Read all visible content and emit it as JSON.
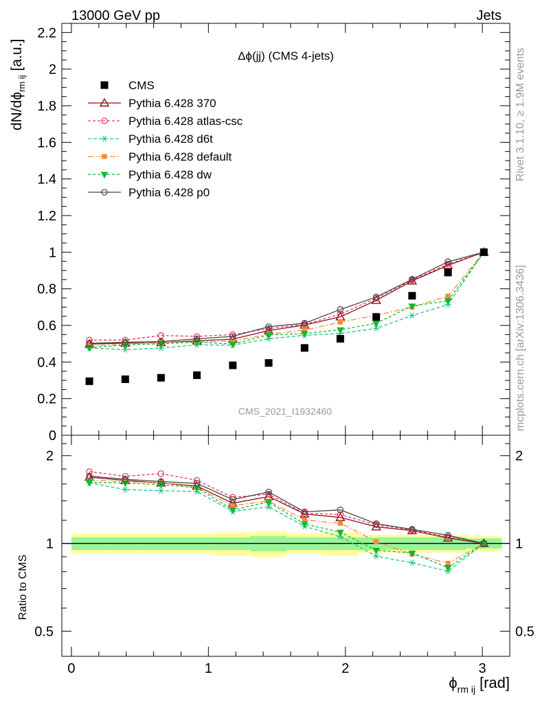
{
  "header": {
    "left": "13000 GeV pp",
    "right": "Jets",
    "side_top": "Rivet 3.1.10, ≥ 1.9M events",
    "side_bottom": "mcplots.cern.ch [arXiv:1306.3436]",
    "analysis": "CMS_2021_I1932460",
    "title": "Δϕ(jj) (CMS 4-jets)",
    "ylabel_main": "dN/dϕ",
    "ylabel_main_sub": "rm ij",
    "ylabel_main_unit": "[a.u.]",
    "ylabel_ratio": "Ratio to CMS",
    "xlabel": "ϕ",
    "xlabel_sub": "rm ij",
    "xlabel_unit": "[rad]"
  },
  "chart_data": {
    "type": "line",
    "x": [
      0.131,
      0.393,
      0.654,
      0.916,
      1.178,
      1.44,
      1.702,
      1.963,
      2.225,
      2.487,
      2.749,
      3.011
    ],
    "main": {
      "ylim": [
        0,
        2.25
      ],
      "yticks": [
        0,
        0.2,
        0.4,
        0.6,
        0.8,
        1,
        1.2,
        1.4,
        1.6,
        1.8,
        2,
        2.2
      ],
      "ytick_labels": [
        "0",
        "0.2",
        "0.4",
        "0.6",
        "0.8",
        "1",
        "1.2",
        "1.4",
        "1.6",
        "1.8",
        "2",
        "2.2"
      ]
    },
    "ratio": {
      "ylim": [
        0.41,
        2.35
      ],
      "log": true,
      "yticks": [
        0.5,
        1,
        2
      ],
      "ytick_labels": [
        "0.5",
        "1",
        "2"
      ],
      "band_inner": [
        0.05,
        0.05,
        0.05,
        0.05,
        0.05,
        0.06,
        0.05,
        0.05,
        0.05,
        0.05,
        0.05,
        0.04
      ],
      "band_outer": [
        0.08,
        0.08,
        0.08,
        0.08,
        0.09,
        0.1,
        0.08,
        0.09,
        0.07,
        0.07,
        0.07,
        0.06
      ]
    },
    "xlim": [
      -0.07,
      3.2
    ],
    "xticks": [
      0,
      1,
      2,
      3
    ],
    "xtick_labels": [
      "0",
      "1",
      "2",
      "3"
    ],
    "data": {
      "name": "CMS",
      "color": "#000000",
      "values": [
        0.295,
        0.306,
        0.314,
        0.328,
        0.382,
        0.395,
        0.477,
        0.527,
        0.646,
        0.762,
        0.889,
        1.0
      ]
    },
    "series": [
      {
        "name": "Pythia 6.428 370",
        "color": "#8b0f1e",
        "dash": "",
        "marker": "triangle-open",
        "values": [
          0.498,
          0.503,
          0.506,
          0.516,
          0.525,
          0.572,
          0.602,
          0.647,
          0.737,
          0.843,
          0.928,
          1.0
        ]
      },
      {
        "name": "Pythia 6.428 atlas-csc",
        "color": "#ee3355",
        "dash": "4,3",
        "marker": "circle-open",
        "values": [
          0.52,
          0.52,
          0.545,
          0.54,
          0.55,
          0.583,
          0.605,
          0.662,
          0.748,
          0.848,
          0.935,
          1.0
        ]
      },
      {
        "name": "Pythia 6.428 d6t",
        "color": "#22c48a",
        "dash": "5,3",
        "marker": "asterisk",
        "values": [
          0.476,
          0.468,
          0.476,
          0.494,
          0.492,
          0.527,
          0.546,
          0.556,
          0.584,
          0.654,
          0.714,
          1.0
        ]
      },
      {
        "name": "Pythia 6.428 default",
        "color": "#f58a3c",
        "dash": "8,3,2,3",
        "marker": "square-filled",
        "values": [
          0.487,
          0.498,
          0.507,
          0.51,
          0.515,
          0.552,
          0.574,
          0.618,
          0.655,
          0.7,
          0.76,
          1.0
        ]
      },
      {
        "name": "Pythia 6.428 dw",
        "color": "#12b830",
        "dash": "4,3",
        "marker": "triangle-down-filled",
        "values": [
          0.478,
          0.493,
          0.5,
          0.509,
          0.498,
          0.548,
          0.556,
          0.576,
          0.612,
          0.706,
          0.735,
          1.0
        ]
      },
      {
        "name": "Pythia 6.428 p0",
        "color": "#444444",
        "dash": "",
        "marker": "circle-open",
        "values": [
          0.502,
          0.508,
          0.512,
          0.527,
          0.54,
          0.593,
          0.612,
          0.687,
          0.755,
          0.852,
          0.948,
          1.0
        ]
      }
    ]
  }
}
